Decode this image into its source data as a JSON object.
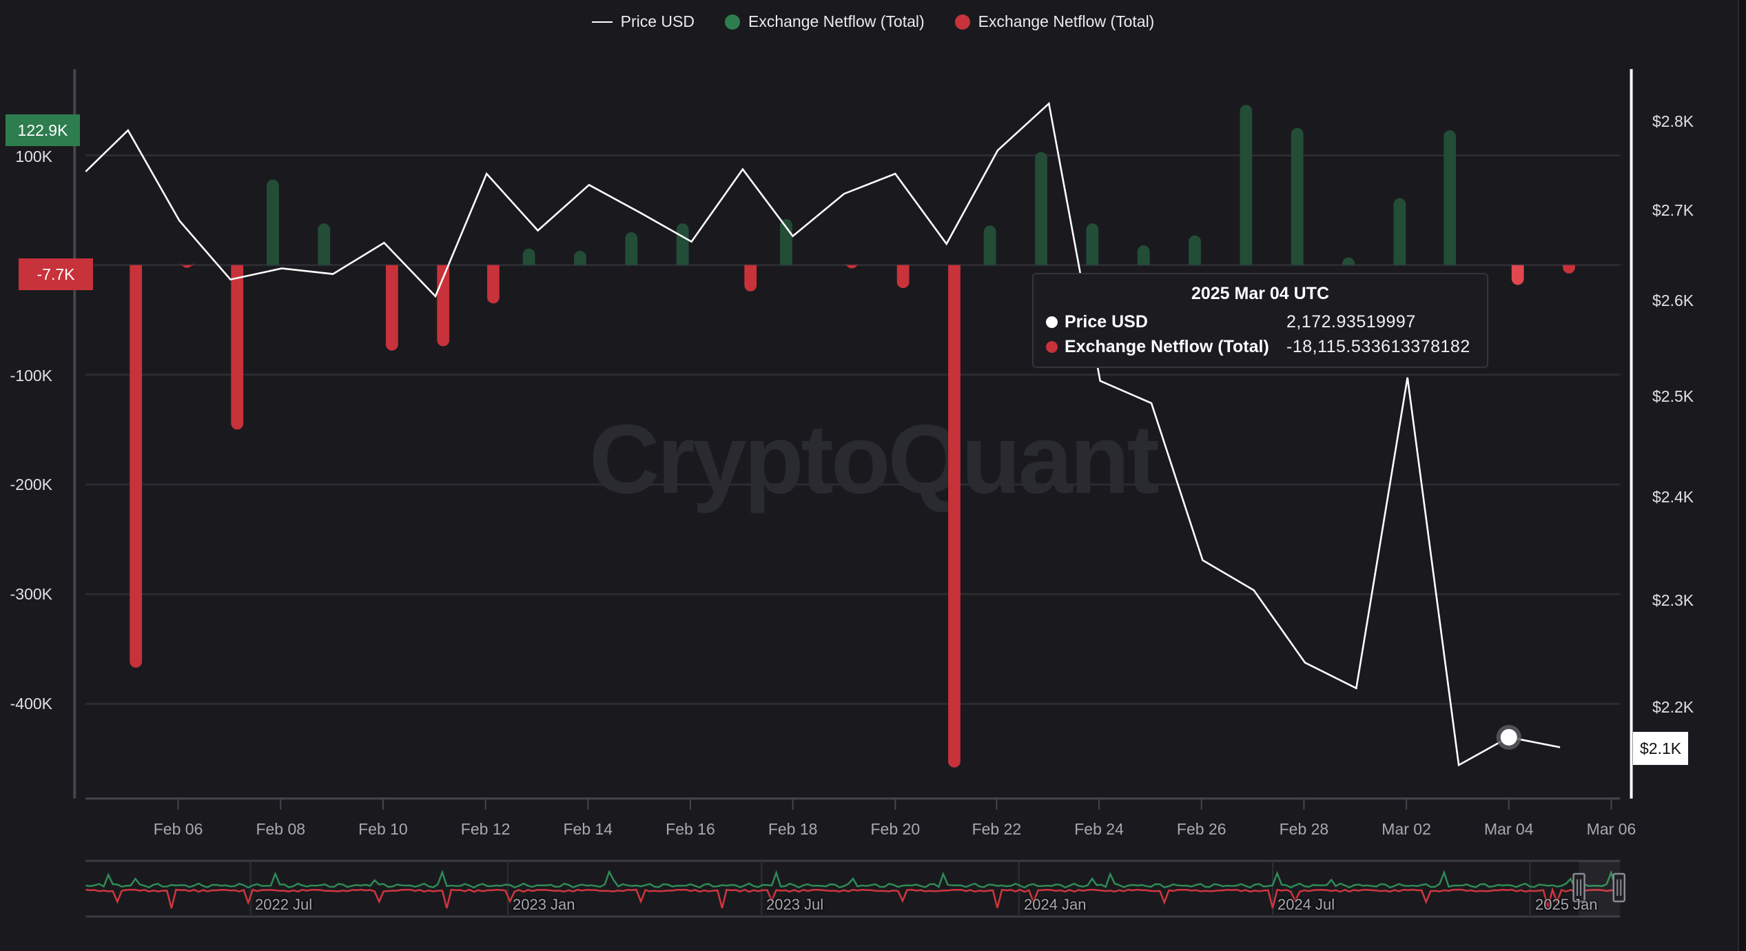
{
  "legend": {
    "items": [
      {
        "label": "Price USD",
        "type": "line",
        "color": "#ffffff"
      },
      {
        "label": "Exchange Netflow (Total)",
        "type": "dot",
        "color": "#2e7d4f"
      },
      {
        "label": "Exchange Netflow (Total)",
        "type": "dot",
        "color": "#c8323a"
      }
    ]
  },
  "watermark": "CryptoQuant",
  "badges": {
    "left_top": "122.9K",
    "left_current": "-7.7K",
    "right_current": "$2.1K"
  },
  "tooltip": {
    "title": "2025 Mar 04 UTC",
    "rows": [
      {
        "name": "Price USD",
        "value": "2,172.93519997",
        "color": "#ffffff"
      },
      {
        "name": "Exchange Netflow (Total)",
        "value": "-18,115.533613378182",
        "color": "#c8323a"
      }
    ]
  },
  "navigator": {
    "labels": [
      "2022 Jul",
      "2023 Jan",
      "2023 Jul",
      "2024 Jan",
      "2024 Jul",
      "2025 Jan"
    ]
  },
  "colors": {
    "background": "#1a1a1e",
    "grid": "#2b2b31",
    "positive_bar": "#234d36",
    "negative_bar": "#c8323a",
    "negative_bar_hover": "#e0474f",
    "price_line": "#ffffff",
    "axis_line": "#45454d"
  },
  "chart_data": {
    "type": "bar+line",
    "title": "",
    "xlabel": "",
    "ylabel_left": "Exchange Netflow (Total)",
    "ylabel_right": "Price USD",
    "x_ticks": [
      "Feb 06",
      "Feb 08",
      "Feb 10",
      "Feb 12",
      "Feb 14",
      "Feb 16",
      "Feb 18",
      "Feb 20",
      "Feb 22",
      "Feb 24",
      "Feb 26",
      "Feb 28",
      "Mar 02",
      "Mar 04",
      "Mar 06"
    ],
    "y_left_ticks": [
      "100K",
      "-100K",
      "-200K",
      "-300K",
      "-400K"
    ],
    "y_right_ticks": [
      "$2.8K",
      "$2.7K",
      "$2.6K",
      "$2.5K",
      "$2.4K",
      "$2.3K",
      "$2.2K"
    ],
    "ylim_left": [
      -480000,
      160000
    ],
    "ylim_right": [
      2120,
      2860
    ],
    "grid": true,
    "legend_position": "top",
    "dates": [
      "Feb 04",
      "Feb 05",
      "Feb 06",
      "Feb 07",
      "Feb 08",
      "Feb 09",
      "Feb 10",
      "Feb 11",
      "Feb 12",
      "Feb 13",
      "Feb 14",
      "Feb 15",
      "Feb 16",
      "Feb 17",
      "Feb 18",
      "Feb 19",
      "Feb 20",
      "Feb 21",
      "Feb 22",
      "Feb 23",
      "Feb 24",
      "Feb 25",
      "Feb 26",
      "Feb 27",
      "Feb 28",
      "Mar 01",
      "Mar 02",
      "Mar 03",
      "Mar 04",
      "Mar 05"
    ],
    "series": [
      {
        "name": "Price USD",
        "type": "line",
        "axis": "right",
        "values": [
          2735,
          2790,
          2690,
          2625,
          2637,
          2631,
          2665,
          2607,
          2740,
          2677,
          2728,
          2697,
          2665,
          2745,
          2670,
          2718,
          2740,
          2662,
          2765,
          2820,
          2515,
          2491,
          2325,
          2293,
          2218,
          2192,
          2520,
          2110,
          2173,
          2162
        ]
      },
      {
        "name": "Exchange Netflow (Total)",
        "type": "bar",
        "axis": "left",
        "values": [
          null,
          -367000,
          -2000,
          -150000,
          78000,
          38000,
          -78000,
          -74000,
          -35000,
          15000,
          13000,
          30000,
          38000,
          -24000,
          42000,
          -3000,
          -21000,
          -458000,
          36000,
          103000,
          38000,
          18000,
          27000,
          146000,
          125000,
          7000,
          61000,
          122900,
          -18115.53,
          -7700
        ]
      }
    ],
    "bar_x_display": [
      null,
      122,
      168,
      213,
      245,
      291,
      352,
      398,
      443,
      475,
      521,
      567,
      613,
      674,
      706,
      765,
      811,
      857,
      889,
      935,
      981,
      1027,
      1073,
      1119,
      1165,
      1211,
      1257,
      1302,
      1363,
      1409
    ],
    "price_points_display": [
      [
        77,
        154
      ],
      [
        115,
        117
      ],
      [
        161,
        198
      ],
      [
        207,
        251
      ],
      [
        253,
        241
      ],
      [
        299,
        246
      ],
      [
        345,
        218
      ],
      [
        391,
        266
      ],
      [
        437,
        156
      ],
      [
        483,
        207
      ],
      [
        529,
        166
      ],
      [
        575,
        191
      ],
      [
        621,
        217
      ],
      [
        667,
        152
      ],
      [
        712,
        212
      ],
      [
        758,
        174
      ],
      [
        804,
        156
      ],
      [
        850,
        219
      ],
      [
        896,
        135
      ],
      [
        942,
        93
      ],
      [
        988,
        342
      ],
      [
        1034,
        362
      ],
      [
        1080,
        503
      ],
      [
        1126,
        530
      ],
      [
        1172,
        595
      ],
      [
        1218,
        618
      ],
      [
        1264,
        339
      ],
      [
        1310,
        687
      ],
      [
        1355,
        662
      ],
      [
        1401,
        671
      ]
    ],
    "highlighted_index": 28
  }
}
